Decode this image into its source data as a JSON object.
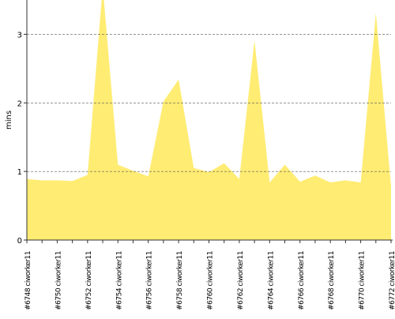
{
  "chart_data": {
    "type": "area",
    "y_label": "mins",
    "categories": [
      "#6748 ciworker11",
      null,
      "#6750 ciworker11",
      null,
      "#6752 ciworker11",
      null,
      "#6754 ciworker11",
      null,
      "#6756 ciworker11",
      null,
      "#6758 ciworker11",
      null,
      "#6760 ciworker11",
      null,
      "#6762 ciworker11",
      null,
      "#6764 ciworker11",
      null,
      "#6766 ciworker11",
      null,
      "#6768 ciworker11",
      null,
      "#6770 ciworker11",
      null,
      "#6772 ciworker11"
    ],
    "values": [
      0.89,
      0.87,
      0.87,
      0.86,
      0.95,
      3.7,
      1.1,
      1.01,
      0.93,
      2.02,
      2.34,
      1.05,
      0.99,
      1.12,
      0.89,
      2.91,
      0.84,
      1.1,
      0.85,
      0.94,
      0.84,
      0.87,
      0.84,
      3.31,
      0.78
    ],
    "color": "#ffec73",
    "ylim": [
      0,
      3.5
    ],
    "yticks": [
      0,
      1,
      2,
      3
    ],
    "grid": true
  }
}
